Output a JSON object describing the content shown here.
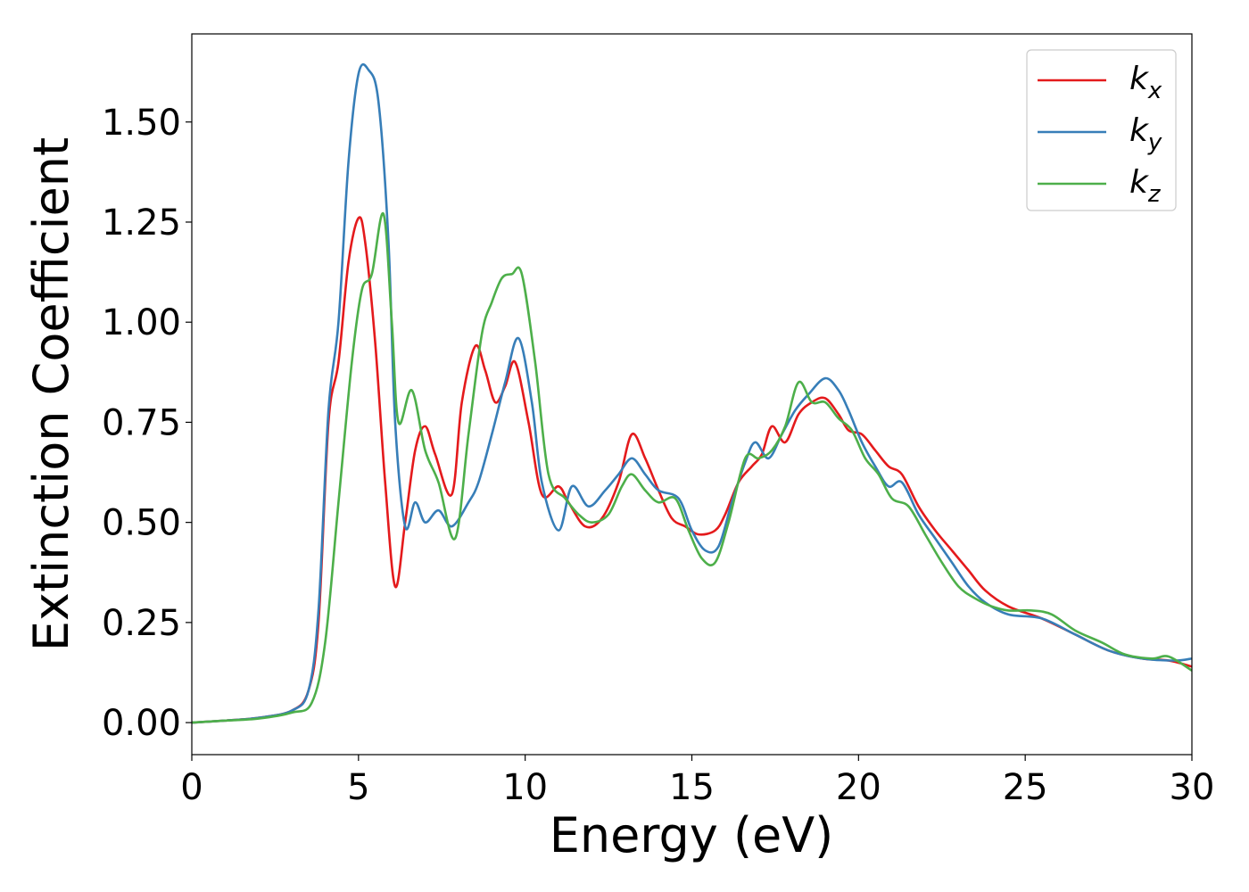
{
  "chart_data": {
    "type": "line",
    "title": "",
    "xlabel": "Energy (eV)",
    "ylabel": "Extinction Coefficient",
    "xlim": [
      0,
      30
    ],
    "ylim": [
      -0.08,
      1.72
    ],
    "xticks": [
      0,
      5,
      10,
      15,
      20,
      25,
      30
    ],
    "xtick_labels": [
      "0",
      "5",
      "10",
      "15",
      "20",
      "25",
      "30"
    ],
    "yticks": [
      0,
      0.25,
      0.5,
      0.75,
      1.0,
      1.25,
      1.5
    ],
    "ytick_labels": [
      "0.00",
      "0.25",
      "0.50",
      "0.75",
      "1.00",
      "1.25",
      "1.50"
    ],
    "grid": false,
    "legend_position": "top-right",
    "series": [
      {
        "name": "k",
        "subscript": "x",
        "color": "#e41a1c",
        "points": [
          [
            0,
            0
          ],
          [
            1,
            0.005
          ],
          [
            2,
            0.012
          ],
          [
            3,
            0.03
          ],
          [
            3.5,
            0.08
          ],
          [
            3.8,
            0.25
          ],
          [
            4.1,
            0.75
          ],
          [
            4.4,
            0.9
          ],
          [
            4.7,
            1.15
          ],
          [
            5.0,
            1.26
          ],
          [
            5.2,
            1.2
          ],
          [
            5.5,
            0.95
          ],
          [
            5.8,
            0.6
          ],
          [
            6.1,
            0.34
          ],
          [
            6.4,
            0.5
          ],
          [
            6.7,
            0.68
          ],
          [
            7.0,
            0.74
          ],
          [
            7.3,
            0.67
          ],
          [
            7.8,
            0.57
          ],
          [
            8.1,
            0.8
          ],
          [
            8.5,
            0.94
          ],
          [
            8.8,
            0.88
          ],
          [
            9.1,
            0.8
          ],
          [
            9.4,
            0.84
          ],
          [
            9.7,
            0.9
          ],
          [
            10.1,
            0.75
          ],
          [
            10.5,
            0.57
          ],
          [
            11.0,
            0.59
          ],
          [
            11.3,
            0.55
          ],
          [
            11.8,
            0.49
          ],
          [
            12.3,
            0.51
          ],
          [
            12.8,
            0.6
          ],
          [
            13.2,
            0.72
          ],
          [
            13.6,
            0.66
          ],
          [
            14.0,
            0.58
          ],
          [
            14.4,
            0.51
          ],
          [
            14.8,
            0.49
          ],
          [
            15.2,
            0.47
          ],
          [
            15.7,
            0.48
          ],
          [
            16.0,
            0.52
          ],
          [
            16.4,
            0.6
          ],
          [
            16.8,
            0.64
          ],
          [
            17.1,
            0.67
          ],
          [
            17.4,
            0.74
          ],
          [
            17.8,
            0.7
          ],
          [
            18.2,
            0.77
          ],
          [
            18.6,
            0.8
          ],
          [
            19.0,
            0.81
          ],
          [
            19.4,
            0.77
          ],
          [
            19.7,
            0.73
          ],
          [
            20.1,
            0.72
          ],
          [
            20.5,
            0.68
          ],
          [
            20.9,
            0.64
          ],
          [
            21.3,
            0.62
          ],
          [
            21.8,
            0.54
          ],
          [
            22.3,
            0.48
          ],
          [
            22.8,
            0.43
          ],
          [
            23.3,
            0.38
          ],
          [
            23.8,
            0.33
          ],
          [
            24.5,
            0.29
          ],
          [
            25.5,
            0.26
          ],
          [
            26.5,
            0.22
          ],
          [
            27.5,
            0.18
          ],
          [
            28.5,
            0.16
          ],
          [
            29.3,
            0.155
          ],
          [
            30,
            0.14
          ]
        ]
      },
      {
        "name": "k",
        "subscript": "y",
        "color": "#377eb8",
        "points": [
          [
            0,
            0
          ],
          [
            1,
            0.005
          ],
          [
            2,
            0.012
          ],
          [
            3,
            0.03
          ],
          [
            3.5,
            0.08
          ],
          [
            3.8,
            0.28
          ],
          [
            4.1,
            0.78
          ],
          [
            4.4,
            1.0
          ],
          [
            4.7,
            1.4
          ],
          [
            5.0,
            1.62
          ],
          [
            5.3,
            1.63
          ],
          [
            5.6,
            1.55
          ],
          [
            5.9,
            1.2
          ],
          [
            6.1,
            0.75
          ],
          [
            6.4,
            0.49
          ],
          [
            6.7,
            0.55
          ],
          [
            7.0,
            0.5
          ],
          [
            7.4,
            0.53
          ],
          [
            7.8,
            0.49
          ],
          [
            8.3,
            0.55
          ],
          [
            8.6,
            0.6
          ],
          [
            9.0,
            0.72
          ],
          [
            9.4,
            0.85
          ],
          [
            9.8,
            0.96
          ],
          [
            10.2,
            0.8
          ],
          [
            10.5,
            0.6
          ],
          [
            11.0,
            0.48
          ],
          [
            11.4,
            0.59
          ],
          [
            11.9,
            0.54
          ],
          [
            12.4,
            0.58
          ],
          [
            12.8,
            0.62
          ],
          [
            13.2,
            0.66
          ],
          [
            13.6,
            0.62
          ],
          [
            14.0,
            0.58
          ],
          [
            14.6,
            0.56
          ],
          [
            15.0,
            0.48
          ],
          [
            15.4,
            0.43
          ],
          [
            15.8,
            0.44
          ],
          [
            16.2,
            0.55
          ],
          [
            16.6,
            0.65
          ],
          [
            16.9,
            0.7
          ],
          [
            17.3,
            0.66
          ],
          [
            17.7,
            0.72
          ],
          [
            18.1,
            0.78
          ],
          [
            18.5,
            0.82
          ],
          [
            19.0,
            0.86
          ],
          [
            19.4,
            0.83
          ],
          [
            19.7,
            0.78
          ],
          [
            20.1,
            0.7
          ],
          [
            20.5,
            0.64
          ],
          [
            20.9,
            0.59
          ],
          [
            21.3,
            0.6
          ],
          [
            21.8,
            0.52
          ],
          [
            22.3,
            0.46
          ],
          [
            22.8,
            0.4
          ],
          [
            23.3,
            0.34
          ],
          [
            23.8,
            0.3
          ],
          [
            24.5,
            0.27
          ],
          [
            25.5,
            0.26
          ],
          [
            26.5,
            0.22
          ],
          [
            27.5,
            0.18
          ],
          [
            28.5,
            0.16
          ],
          [
            29.5,
            0.155
          ],
          [
            30,
            0.16
          ]
        ]
      },
      {
        "name": "k",
        "subscript": "z",
        "color": "#4daf4a",
        "points": [
          [
            0,
            0
          ],
          [
            1,
            0.005
          ],
          [
            2,
            0.01
          ],
          [
            3,
            0.025
          ],
          [
            3.6,
            0.05
          ],
          [
            4.0,
            0.2
          ],
          [
            4.4,
            0.55
          ],
          [
            4.8,
            0.9
          ],
          [
            5.1,
            1.08
          ],
          [
            5.4,
            1.12
          ],
          [
            5.75,
            1.27
          ],
          [
            6.0,
            1.0
          ],
          [
            6.2,
            0.75
          ],
          [
            6.6,
            0.83
          ],
          [
            7.0,
            0.68
          ],
          [
            7.4,
            0.6
          ],
          [
            7.9,
            0.46
          ],
          [
            8.3,
            0.72
          ],
          [
            8.7,
            0.97
          ],
          [
            9.0,
            1.05
          ],
          [
            9.3,
            1.11
          ],
          [
            9.6,
            1.12
          ],
          [
            9.9,
            1.12
          ],
          [
            10.3,
            0.9
          ],
          [
            10.7,
            0.62
          ],
          [
            11.2,
            0.56
          ],
          [
            11.6,
            0.52
          ],
          [
            12.0,
            0.5
          ],
          [
            12.5,
            0.52
          ],
          [
            12.9,
            0.59
          ],
          [
            13.2,
            0.62
          ],
          [
            13.6,
            0.58
          ],
          [
            14.0,
            0.55
          ],
          [
            14.5,
            0.56
          ],
          [
            14.9,
            0.48
          ],
          [
            15.3,
            0.41
          ],
          [
            15.7,
            0.4
          ],
          [
            16.1,
            0.5
          ],
          [
            16.6,
            0.66
          ],
          [
            17.0,
            0.66
          ],
          [
            17.4,
            0.68
          ],
          [
            17.8,
            0.74
          ],
          [
            18.2,
            0.85
          ],
          [
            18.6,
            0.8
          ],
          [
            19.0,
            0.8
          ],
          [
            19.4,
            0.76
          ],
          [
            19.8,
            0.73
          ],
          [
            20.2,
            0.66
          ],
          [
            20.6,
            0.62
          ],
          [
            21.0,
            0.56
          ],
          [
            21.5,
            0.54
          ],
          [
            22.0,
            0.47
          ],
          [
            22.5,
            0.4
          ],
          [
            23.0,
            0.34
          ],
          [
            23.5,
            0.31
          ],
          [
            24.0,
            0.29
          ],
          [
            24.5,
            0.28
          ],
          [
            25.2,
            0.28
          ],
          [
            25.8,
            0.27
          ],
          [
            26.5,
            0.23
          ],
          [
            27.3,
            0.2
          ],
          [
            28.0,
            0.17
          ],
          [
            28.8,
            0.16
          ],
          [
            29.3,
            0.165
          ],
          [
            30,
            0.13
          ]
        ]
      }
    ]
  }
}
